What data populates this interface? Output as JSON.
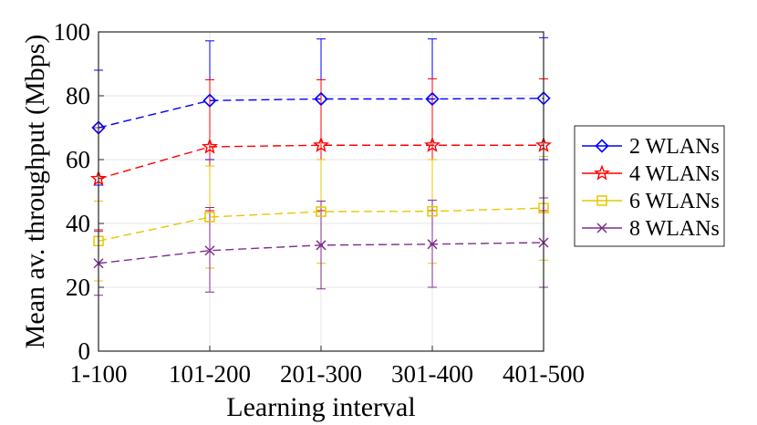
{
  "chart_data": {
    "type": "line",
    "title": "",
    "xlabel": "Learning interval",
    "ylabel": "Mean av. throughput (Mbps)",
    "categories": [
      "1-100",
      "101-200",
      "201-300",
      "301-400",
      "401-500"
    ],
    "ylim": [
      0,
      100
    ],
    "yticks": [
      0,
      20,
      40,
      60,
      80,
      100
    ],
    "grid": true,
    "legend_position": "right",
    "series": [
      {
        "name": "2 WLANs",
        "color": "#0000ff",
        "marker": "diamond",
        "values": [
          70,
          78.5,
          79,
          79,
          79.2
        ],
        "error_lower": [
          52,
          60,
          60,
          60,
          60
        ],
        "error_upper": [
          88,
          97.2,
          97.8,
          97.8,
          98.2
        ]
      },
      {
        "name": "4 WLANs",
        "color": "#ff0000",
        "marker": "star",
        "values": [
          54,
          64,
          64.5,
          64.5,
          64.5
        ],
        "error_lower": [
          38,
          44,
          44,
          44,
          44
        ],
        "error_upper": [
          70,
          85,
          85,
          85.3,
          85.3
        ]
      },
      {
        "name": "6 WLANs",
        "color": "#e6c700",
        "marker": "square",
        "values": [
          34.5,
          42,
          43.7,
          43.8,
          44.8
        ],
        "error_lower": [
          22,
          26,
          27.5,
          27.5,
          28.5
        ],
        "error_upper": [
          47,
          58,
          60,
          60,
          61
        ]
      },
      {
        "name": "8 WLANs",
        "color": "#7e2f8e",
        "marker": "x",
        "values": [
          27.5,
          31.5,
          33.2,
          33.5,
          34
        ],
        "error_lower": [
          17.5,
          18.5,
          19.5,
          20,
          20
        ],
        "error_upper": [
          37.5,
          45,
          47,
          47.3,
          48
        ]
      }
    ]
  }
}
